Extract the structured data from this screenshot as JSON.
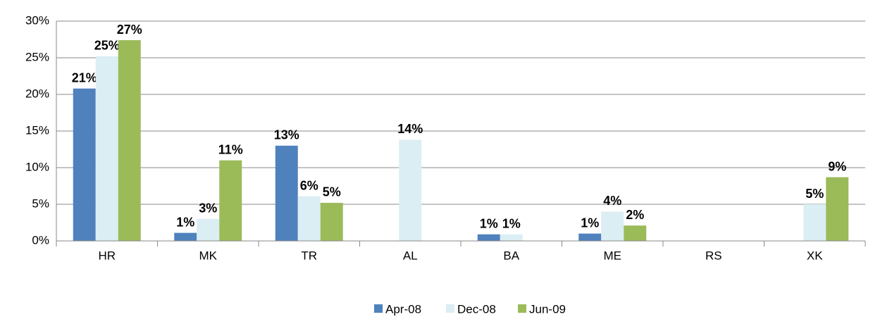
{
  "chart_data": {
    "type": "bar",
    "categories": [
      "HR",
      "MK",
      "TR",
      "AL",
      "BA",
      "ME",
      "RS",
      "XK"
    ],
    "series": [
      {
        "name": "Apr-08",
        "color": "#4f81bd",
        "values": [
          20.8,
          1.1,
          13.0,
          null,
          0.9,
          1.0,
          null,
          null
        ],
        "value_labels": [
          "21%",
          "1%",
          "13%",
          null,
          "1%",
          "1%",
          null,
          null
        ]
      },
      {
        "name": "Dec-08",
        "color": "#dbeef4",
        "values": [
          25.2,
          3.0,
          6.1,
          13.8,
          0.9,
          4.0,
          null,
          5.0
        ],
        "value_labels": [
          "25%",
          "3%",
          "6%",
          "14%",
          "1%",
          "4%",
          null,
          "5%"
        ]
      },
      {
        "name": "Jun-09",
        "color": "#9bbb59",
        "values": [
          27.4,
          11.0,
          5.2,
          null,
          null,
          2.1,
          null,
          8.7
        ],
        "value_labels": [
          "27%",
          "11%",
          "5%",
          null,
          null,
          "2%",
          null,
          "9%"
        ]
      }
    ],
    "ylim": [
      0,
      30
    ],
    "yticks": [
      {
        "value": 0,
        "label": "0%"
      },
      {
        "value": 5,
        "label": "5%"
      },
      {
        "value": 10,
        "label": "10%"
      },
      {
        "value": 15,
        "label": "15%"
      },
      {
        "value": 20,
        "label": "20%"
      },
      {
        "value": 25,
        "label": "25%"
      },
      {
        "value": 30,
        "label": "30%"
      }
    ],
    "grid": true,
    "legend": "bottom"
  }
}
